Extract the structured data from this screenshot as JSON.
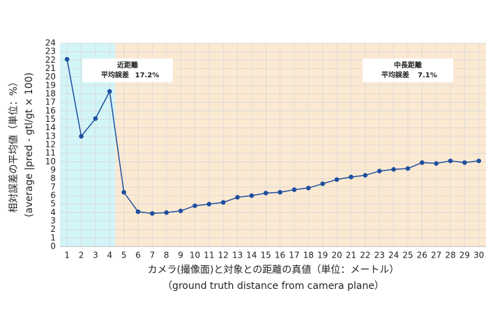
{
  "chart_data": {
    "type": "line",
    "x": [
      1,
      2,
      3,
      4,
      5,
      6,
      7,
      8,
      9,
      10,
      11,
      12,
      13,
      14,
      15,
      16,
      17,
      18,
      19,
      20,
      21,
      22,
      23,
      24,
      25,
      26,
      27,
      28,
      29,
      30
    ],
    "series": [
      {
        "color": "#1f4f9e",
        "values": [
          22.1,
          13.0,
          15.1,
          18.3,
          6.4,
          4.1,
          3.9,
          4.0,
          4.2,
          4.8,
          5.0,
          5.2,
          5.8,
          6.0,
          6.3,
          6.4,
          6.7,
          6.9,
          7.4,
          7.9,
          8.2,
          8.4,
          8.9,
          9.1,
          9.2,
          9.9,
          9.8,
          10.1,
          9.9,
          10.1
        ]
      }
    ],
    "xlim": [
      0.5,
      30.5
    ],
    "xticks": [
      1,
      2,
      3,
      4,
      5,
      6,
      7,
      8,
      9,
      10,
      11,
      12,
      13,
      14,
      15,
      16,
      17,
      18,
      19,
      20,
      21,
      22,
      23,
      24,
      25,
      26,
      27,
      28,
      29,
      30
    ],
    "ylim": [
      0,
      24
    ],
    "yticks": [
      0,
      1,
      2,
      3,
      4,
      5,
      6,
      7,
      8,
      9,
      10,
      11,
      12,
      13,
      14,
      15,
      16,
      17,
      18,
      19,
      20,
      21,
      22,
      23,
      24
    ],
    "grid": true,
    "ylabel": [
      "相対誤差の平均値（単位：%）",
      "(average |pred - gtl/gt × 100)"
    ],
    "xlabel": [
      "カメラ(撮像面)と対象との距離の真値（単位：メートル）",
      "（ground truth distance from camera plane）"
    ],
    "regions": [
      {
        "span": [
          0.5,
          4.4
        ],
        "color": "#d2f5f8",
        "title": "近距離",
        "error_label": "平均誤差",
        "error": "17.2%"
      },
      {
        "span": [
          4.4,
          30.5
        ],
        "color": "#fbe9d2",
        "title": "中長距離",
        "error_label": "平均誤差",
        "error": "7.1%"
      }
    ]
  }
}
